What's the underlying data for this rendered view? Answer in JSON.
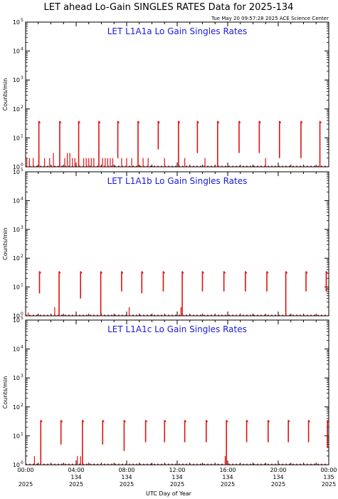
{
  "title": "LET ahead Lo-Gain SINGLES RATES Data for 2025-134",
  "timestamp": "Tue May 20 09:57:28 2025 ACE Science Center",
  "xlabel": "UTC Day of Year",
  "ylabel": "Counts/min",
  "x_ticks": [
    {
      "hour": 0,
      "lines": [
        "00:00",
        "",
        "2025"
      ]
    },
    {
      "hour": 4,
      "lines": [
        "04:00",
        "134",
        "2025"
      ]
    },
    {
      "hour": 8,
      "lines": [
        "08:00",
        "134",
        "2025"
      ]
    },
    {
      "hour": 12,
      "lines": [
        "12:00",
        "134",
        "2025"
      ]
    },
    {
      "hour": 16,
      "lines": [
        "16:00",
        "134",
        "2025"
      ]
    },
    {
      "hour": 20,
      "lines": [
        "20:00",
        "134",
        "2025"
      ]
    },
    {
      "hour": 24,
      "lines": [
        "00:00",
        "135",
        "2025"
      ]
    }
  ],
  "y_ticks": [
    {
      "base": "10",
      "exp": "0"
    },
    {
      "base": "10",
      "exp": "1"
    },
    {
      "base": "10",
      "exp": "2"
    },
    {
      "base": "10",
      "exp": "3"
    },
    {
      "base": "10",
      "exp": "4"
    },
    {
      "base": "10",
      "exp": "5"
    }
  ],
  "colors": {
    "data": "#e01010",
    "panel_title": "#1a1adb",
    "axes": "#000000"
  },
  "chart_data": [
    {
      "type": "line",
      "title": "LET L1A1a Lo Gain Singles Rates",
      "x_unit": "hours UTC, day 2025-134",
      "xlim": [
        0,
        24
      ],
      "ylim": [
        1,
        100000
      ],
      "yscale": "log",
      "spikes": [
        {
          "hour": 1.05,
          "top": 38,
          "bottom": 1
        },
        {
          "hour": 2.7,
          "top": 38,
          "bottom": 1
        },
        {
          "hour": 4.2,
          "top": 38,
          "bottom": 1
        },
        {
          "hour": 5.8,
          "top": 38,
          "bottom": 1
        },
        {
          "hour": 7.3,
          "top": 38,
          "bottom": 2
        },
        {
          "hour": 8.9,
          "top": 38,
          "bottom": 1
        },
        {
          "hour": 10.5,
          "top": 38,
          "bottom": 4
        },
        {
          "hour": 12.1,
          "top": 38,
          "bottom": 1
        },
        {
          "hour": 13.6,
          "top": 38,
          "bottom": 3
        },
        {
          "hour": 15.2,
          "top": 38,
          "bottom": 1
        },
        {
          "hour": 16.9,
          "top": 38,
          "bottom": 3
        },
        {
          "hour": 18.5,
          "top": 38,
          "bottom": 3
        },
        {
          "hour": 20.1,
          "top": 38,
          "bottom": 2
        },
        {
          "hour": 21.8,
          "top": 38,
          "bottom": 2
        },
        {
          "hour": 23.3,
          "top": 38,
          "bottom": 1
        }
      ],
      "background": [
        {
          "hour": 0.1,
          "value": 2
        },
        {
          "hour": 0.3,
          "value": 2
        },
        {
          "hour": 0.6,
          "value": 2
        },
        {
          "hour": 1.5,
          "value": 2
        },
        {
          "hour": 1.9,
          "value": 2
        },
        {
          "hour": 2.2,
          "value": 3
        },
        {
          "hour": 3.1,
          "value": 2
        },
        {
          "hour": 3.3,
          "value": 3
        },
        {
          "hour": 3.5,
          "value": 3
        },
        {
          "hour": 3.7,
          "value": 2
        },
        {
          "hour": 3.9,
          "value": 2
        },
        {
          "hour": 4.6,
          "value": 2
        },
        {
          "hour": 4.8,
          "value": 2
        },
        {
          "hour": 5.0,
          "value": 2
        },
        {
          "hour": 5.2,
          "value": 2
        },
        {
          "hour": 5.4,
          "value": 2
        },
        {
          "hour": 6.1,
          "value": 2
        },
        {
          "hour": 6.3,
          "value": 2
        },
        {
          "hour": 6.5,
          "value": 2
        },
        {
          "hour": 6.7,
          "value": 2
        },
        {
          "hour": 6.9,
          "value": 2
        },
        {
          "hour": 7.6,
          "value": 2
        },
        {
          "hour": 8.0,
          "value": 2
        },
        {
          "hour": 8.4,
          "value": 2
        },
        {
          "hour": 9.3,
          "value": 2
        },
        {
          "hour": 9.7,
          "value": 2
        },
        {
          "hour": 11.0,
          "value": 2
        },
        {
          "hour": 12.6,
          "value": 2
        },
        {
          "hour": 14.2,
          "value": 2
        },
        {
          "hour": 19.0,
          "value": 2
        }
      ]
    },
    {
      "type": "line",
      "title": "LET L1A1b Lo Gain Singles Rates",
      "x_unit": "hours UTC, day 2025-134",
      "xlim": [
        0,
        24
      ],
      "ylim": [
        1,
        100000
      ],
      "yscale": "log",
      "spikes": [
        {
          "hour": 1.1,
          "top": 35,
          "bottom": 6
        },
        {
          "hour": 2.65,
          "top": 35,
          "bottom": 1
        },
        {
          "hour": 4.35,
          "top": 35,
          "bottom": 4
        },
        {
          "hour": 5.95,
          "top": 35,
          "bottom": 1
        },
        {
          "hour": 7.6,
          "top": 35,
          "bottom": 7
        },
        {
          "hour": 9.2,
          "top": 35,
          "bottom": 6
        },
        {
          "hour": 10.9,
          "top": 35,
          "bottom": 7
        },
        {
          "hour": 12.4,
          "top": 35,
          "bottom": 1
        },
        {
          "hour": 14.0,
          "top": 35,
          "bottom": 7
        },
        {
          "hour": 15.7,
          "top": 35,
          "bottom": 7
        },
        {
          "hour": 17.4,
          "top": 35,
          "bottom": 7
        },
        {
          "hour": 19.1,
          "top": 35,
          "bottom": 7
        },
        {
          "hour": 20.6,
          "top": 35,
          "bottom": 1
        },
        {
          "hour": 22.2,
          "top": 35,
          "bottom": 7
        },
        {
          "hour": 23.8,
          "top": 35,
          "bottom": 7
        }
      ],
      "background": [
        {
          "hour": 0.2,
          "value": 1.3
        },
        {
          "hour": 2.3,
          "value": 2
        },
        {
          "hour": 8.2,
          "value": 2
        },
        {
          "hour": 12.3,
          "value": 2
        }
      ]
    },
    {
      "type": "line",
      "title": "LET L1A1c Lo Gain Singles Rates",
      "x_unit": "hours UTC, day 2025-134",
      "xlim": [
        0,
        24
      ],
      "ylim": [
        1,
        100000
      ],
      "yscale": "log",
      "spikes": [
        {
          "hour": 1.2,
          "top": 35,
          "bottom": 1
        },
        {
          "hour": 2.8,
          "top": 35,
          "bottom": 5
        },
        {
          "hour": 4.5,
          "top": 35,
          "bottom": 1
        },
        {
          "hour": 6.1,
          "top": 35,
          "bottom": 5
        },
        {
          "hour": 7.8,
          "top": 35,
          "bottom": 3
        },
        {
          "hour": 9.5,
          "top": 35,
          "bottom": 6
        },
        {
          "hour": 11.0,
          "top": 35,
          "bottom": 6
        },
        {
          "hour": 12.6,
          "top": 35,
          "bottom": 6
        },
        {
          "hour": 14.3,
          "top": 35,
          "bottom": 6
        },
        {
          "hour": 15.9,
          "top": 35,
          "bottom": 1
        },
        {
          "hour": 17.5,
          "top": 35,
          "bottom": 6
        },
        {
          "hour": 19.2,
          "top": 35,
          "bottom": 6
        },
        {
          "hour": 20.8,
          "top": 35,
          "bottom": 6
        },
        {
          "hour": 22.4,
          "top": 35,
          "bottom": 6
        },
        {
          "hour": 23.9,
          "top": 35,
          "bottom": 4
        }
      ],
      "background": [
        {
          "hour": 0.7,
          "value": 2
        },
        {
          "hour": 4.1,
          "value": 2
        },
        {
          "hour": 4.35,
          "value": 2
        },
        {
          "hour": 15.8,
          "value": 2
        }
      ]
    }
  ]
}
